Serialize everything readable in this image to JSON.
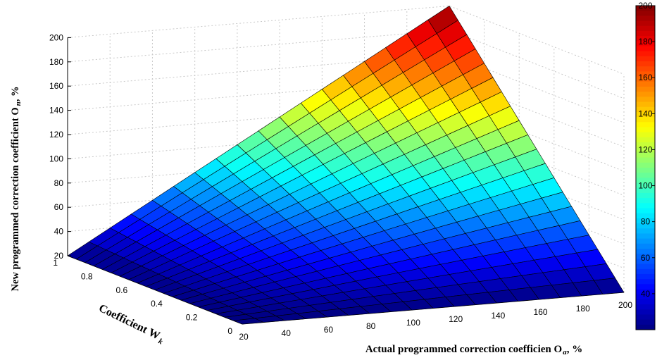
{
  "chart_data": {
    "type": "surface3d",
    "title": "",
    "colormap": "jet",
    "xlabel": "Actual programmed correction coefficien O",
    "xlabel_sub": "a",
    "xlabel_unit": ", %",
    "ylabel": "Coefficient W",
    "ylabel_sub": "k",
    "zlabel": "New programmed correction coefficient O",
    "zlabel_sub": "n",
    "zlabel_unit": ", %",
    "x_ticks": [
      "20",
      "40",
      "60",
      "80",
      "100",
      "120",
      "140",
      "160",
      "180",
      "200"
    ],
    "y_ticks": [
      "0",
      "0.2",
      "0.4",
      "0.6",
      "0.8",
      "1"
    ],
    "z_ticks": [
      "20",
      "40",
      "60",
      "80",
      "100",
      "120",
      "140",
      "160",
      "180",
      "200"
    ],
    "colorbar_ticks": [
      "40",
      "60",
      "80",
      "100",
      "120",
      "140",
      "160",
      "180",
      "200"
    ],
    "xlim": [
      20,
      200
    ],
    "ylim": [
      0,
      1
    ],
    "zlim": [
      20,
      200
    ],
    "clim": [
      20,
      200
    ],
    "grid": true,
    "x": [
      20,
      200
    ],
    "y": [
      0,
      1
    ],
    "z": [
      [
        20,
        20
      ],
      [
        20,
        200
      ]
    ],
    "corner_values": [
      {
        "x": 20,
        "y": 0,
        "z": 20
      },
      {
        "x": 200,
        "y": 0,
        "z": 20
      },
      {
        "x": 20,
        "y": 1,
        "z": 20
      },
      {
        "x": 200,
        "y": 1,
        "z": 200
      }
    ]
  }
}
